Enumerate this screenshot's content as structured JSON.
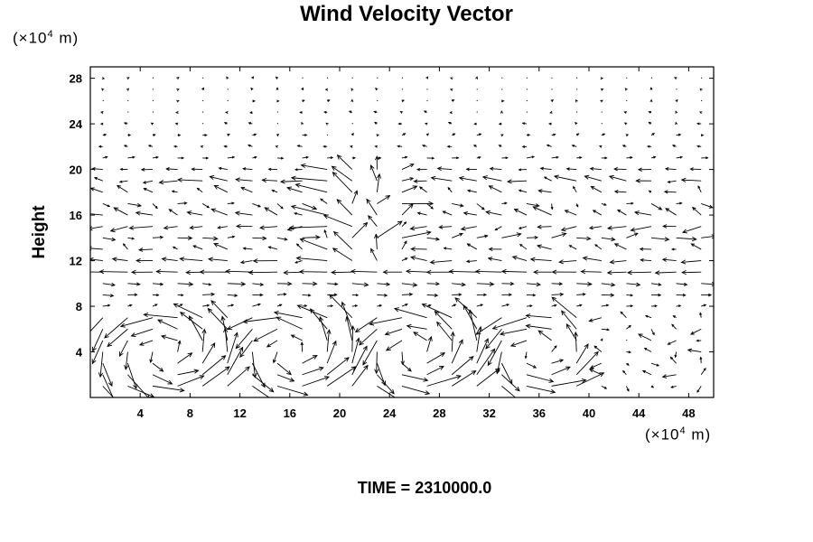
{
  "title": "Wind Velocity Vector",
  "y_unit": {
    "prefix": "(×10",
    "exp": "4",
    "suffix": " m)"
  },
  "x_unit": {
    "prefix": "(×10",
    "exp": "4",
    "suffix": " m)"
  },
  "ylabel": "Height",
  "footer": "TIME = 2310000.0",
  "chart_data": {
    "type": "vector_field",
    "title": "Wind Velocity Vector",
    "xlabel": "",
    "ylabel": "Height",
    "x_unit": "(×10^4 m)",
    "y_unit": "(×10^4 m)",
    "xlim": [
      0,
      50
    ],
    "ylim": [
      0,
      29
    ],
    "x_ticks": [
      4,
      8,
      12,
      16,
      20,
      24,
      28,
      32,
      36,
      40,
      44,
      48
    ],
    "y_ticks": [
      4,
      8,
      12,
      16,
      20,
      24,
      28
    ],
    "grid": false,
    "grid_spacing": [
      2,
      1
    ],
    "arrow_color": "#000000",
    "layers": [
      {
        "y": 28,
        "u": 0.0,
        "v": 0.02
      },
      {
        "y": 27,
        "u": 0.0,
        "v": 0.04
      },
      {
        "y": 26,
        "u": 0.03,
        "v": 0.02
      },
      {
        "y": 25,
        "u": -0.05,
        "v": 0.02
      },
      {
        "y": 24,
        "u": -0.08,
        "v": 0.03
      },
      {
        "y": 23,
        "u": 0.1,
        "v": 0.04
      },
      {
        "y": 22,
        "u": -0.12,
        "v": 0.03
      },
      {
        "y": 21,
        "u": 0.2,
        "v": 0.02
      },
      {
        "y": 20,
        "u": -0.4,
        "v": 0.02
      },
      {
        "y": 19,
        "u": -0.6,
        "v": 0.05
      },
      {
        "y": 18,
        "u": -0.3,
        "v": 0.15
      },
      {
        "y": 17,
        "u": 0.3,
        "v": -0.1
      },
      {
        "y": 16,
        "u": -0.5,
        "v": 0.2
      },
      {
        "y": 15,
        "u": -0.6,
        "v": -0.1
      },
      {
        "y": 14,
        "u": 0.5,
        "v": 0.05
      },
      {
        "y": 13,
        "u": -0.4,
        "v": 0.1
      },
      {
        "y": 12,
        "u": -0.6,
        "v": 0.05
      },
      {
        "y": 11,
        "u": -0.9,
        "v": 0.0
      },
      {
        "y": 10,
        "u": 0.5,
        "v": -0.05
      },
      {
        "y": 9,
        "u": 0.35,
        "v": 0.0
      },
      {
        "y": 8,
        "u": 0.2,
        "v": 0.05
      }
    ],
    "near_surface_circulation_centers": [
      {
        "x": 6,
        "y": 4
      },
      {
        "x": 16,
        "y": 4
      },
      {
        "x": 26,
        "y": 4
      },
      {
        "x": 36,
        "y": 4
      }
    ],
    "plume": {
      "x": 22,
      "y_from": 12,
      "y_to": 20
    }
  }
}
